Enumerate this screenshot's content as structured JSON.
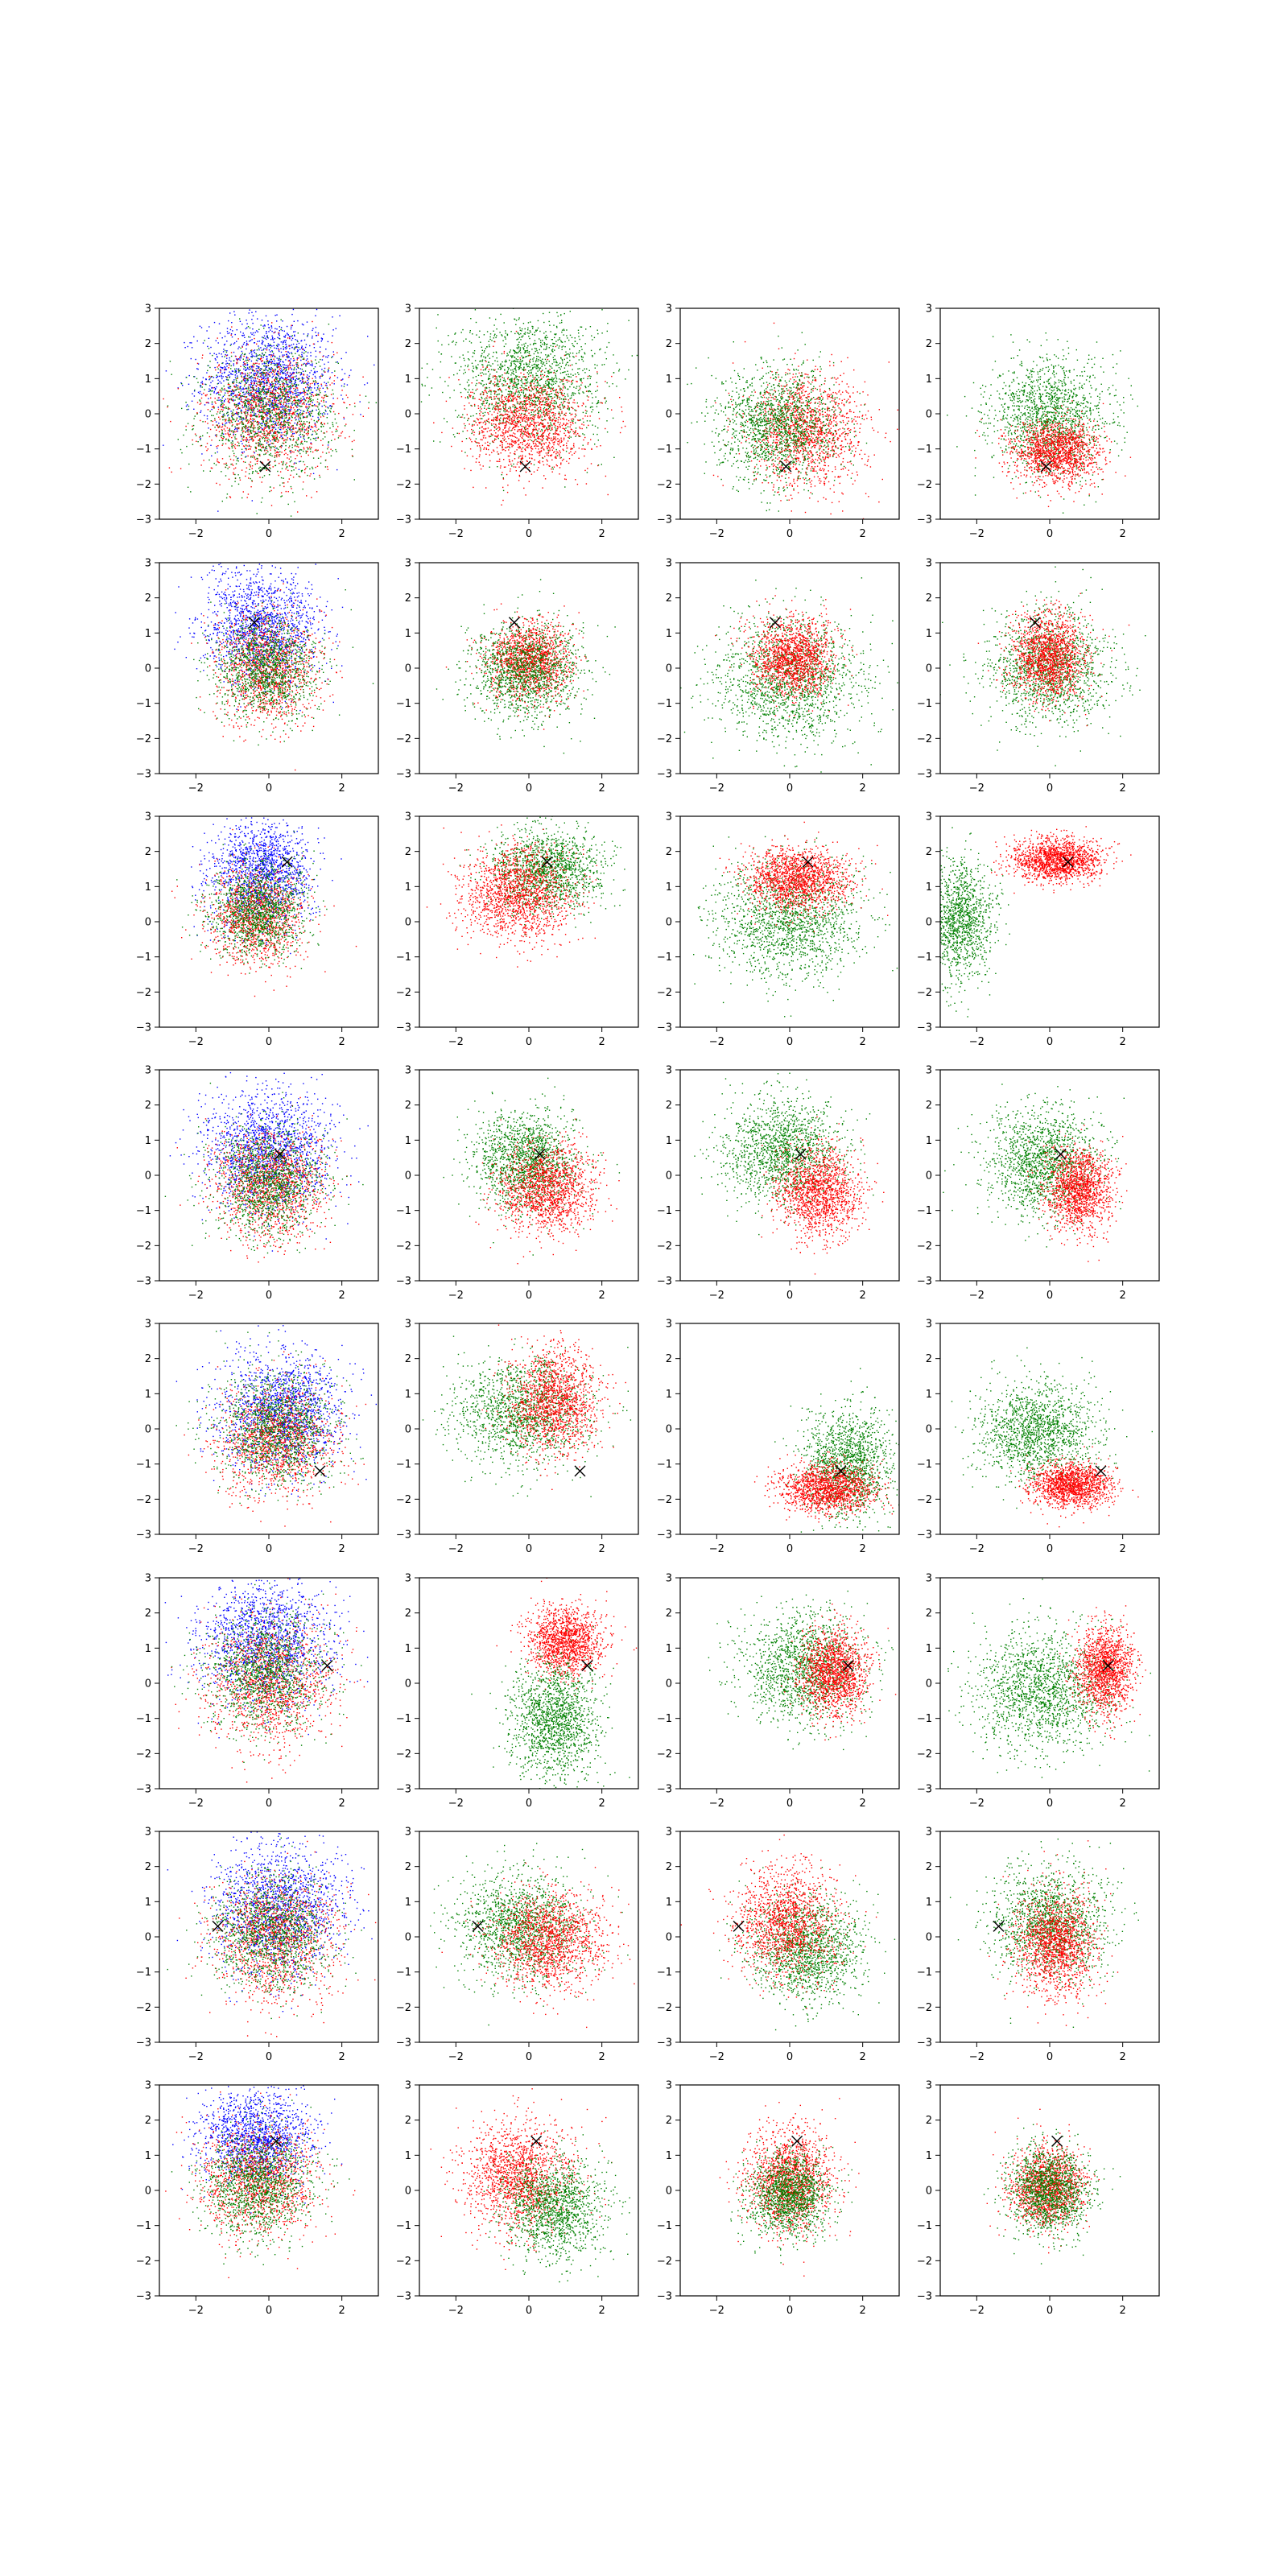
{
  "figure": {
    "rows": 8,
    "cols": 4
  },
  "colors": {
    "blue": "#0000ff",
    "green": "#008000",
    "red": "#ff0000",
    "marker": "#000000",
    "axes": "#000000"
  },
  "chart_data": {
    "type": "scatter",
    "title": "",
    "xlabel": "",
    "ylabel": "",
    "xlim": [
      -3,
      3
    ],
    "ylim": [
      -3,
      3
    ],
    "xticks": [
      "−2",
      "0",
      "2"
    ],
    "yticks": [
      "−3",
      "−2",
      "−1",
      "0",
      "1",
      "2",
      "3"
    ],
    "grid": false,
    "legend": "none",
    "marker_symbol": "x",
    "rows": [
      {
        "marker": [
          -0.1,
          -1.5
        ],
        "panels": [
          {
            "clouds": [
              {
                "color": "blue",
                "cx": 0.0,
                "cy": 1.0,
                "sx": 0.9,
                "sy": 0.9,
                "n": 1500
              },
              {
                "color": "red",
                "cx": 0.0,
                "cy": 0.0,
                "sx": 0.9,
                "sy": 0.9,
                "n": 1300
              },
              {
                "color": "green",
                "cx": 0.0,
                "cy": 0.0,
                "sx": 0.9,
                "sy": 0.9,
                "n": 1300
              }
            ]
          },
          {
            "clouds": [
              {
                "color": "green",
                "cx": 0.0,
                "cy": 1.0,
                "sx": 1.0,
                "sy": 0.9,
                "n": 1600
              },
              {
                "color": "red",
                "cx": 0.0,
                "cy": -0.3,
                "sx": 0.8,
                "sy": 0.7,
                "n": 1400
              }
            ]
          },
          {
            "clouds": [
              {
                "color": "red",
                "cx": 0.5,
                "cy": -0.5,
                "sx": 0.8,
                "sy": 0.8,
                "n": 1400
              },
              {
                "color": "green",
                "cx": -0.3,
                "cy": -0.3,
                "sx": 0.8,
                "sy": 0.8,
                "n": 1500
              }
            ]
          },
          {
            "clouds": [
              {
                "color": "green",
                "cx": 0.0,
                "cy": -0.1,
                "sx": 0.8,
                "sy": 0.8,
                "n": 1500
              },
              {
                "color": "red",
                "cx": 0.2,
                "cy": -1.1,
                "sx": 0.6,
                "sy": 0.45,
                "n": 1400
              }
            ]
          }
        ]
      },
      {
        "marker": [
          -0.4,
          1.3
        ],
        "panels": [
          {
            "clouds": [
              {
                "color": "blue",
                "cx": -0.2,
                "cy": 1.2,
                "sx": 0.8,
                "sy": 0.8,
                "n": 1400
              },
              {
                "color": "red",
                "cx": 0.0,
                "cy": 0.0,
                "sx": 0.7,
                "sy": 0.8,
                "n": 1200
              },
              {
                "color": "green",
                "cx": -0.1,
                "cy": 0.0,
                "sx": 0.7,
                "sy": 0.7,
                "n": 1300
              }
            ]
          },
          {
            "clouds": [
              {
                "color": "red",
                "cx": 0.0,
                "cy": 0.2,
                "sx": 0.55,
                "sy": 0.55,
                "n": 1400
              },
              {
                "color": "green",
                "cx": -0.1,
                "cy": -0.1,
                "sx": 0.75,
                "sy": 0.7,
                "n": 1400
              }
            ]
          },
          {
            "clouds": [
              {
                "color": "green",
                "cx": 0.0,
                "cy": -0.3,
                "sx": 1.0,
                "sy": 0.85,
                "n": 1600
              },
              {
                "color": "red",
                "cx": 0.1,
                "cy": 0.3,
                "sx": 0.55,
                "sy": 0.55,
                "n": 1400
              }
            ]
          },
          {
            "clouds": [
              {
                "color": "green",
                "cx": 0.0,
                "cy": 0.0,
                "sx": 0.8,
                "sy": 0.8,
                "n": 1500
              },
              {
                "color": "red",
                "cx": 0.0,
                "cy": 0.3,
                "sx": 0.5,
                "sy": 0.6,
                "n": 1400
              }
            ]
          }
        ]
      },
      {
        "marker": [
          0.5,
          1.7
        ],
        "panels": [
          {
            "clouds": [
              {
                "color": "blue",
                "cx": -0.2,
                "cy": 1.4,
                "sx": 0.7,
                "sy": 0.75,
                "n": 1400
              },
              {
                "color": "red",
                "cx": -0.3,
                "cy": 0.2,
                "sx": 0.65,
                "sy": 0.7,
                "n": 1200
              },
              {
                "color": "green",
                "cx": -0.3,
                "cy": 0.3,
                "sx": 0.65,
                "sy": 0.65,
                "n": 1300
              }
            ]
          },
          {
            "clouds": [
              {
                "color": "green",
                "cx": 0.5,
                "cy": 1.5,
                "sx": 0.75,
                "sy": 0.55,
                "n": 1400
              },
              {
                "color": "red",
                "cx": -0.3,
                "cy": 0.8,
                "sx": 0.75,
                "sy": 0.65,
                "n": 1500
              }
            ]
          },
          {
            "clouds": [
              {
                "color": "green",
                "cx": 0.0,
                "cy": 0.0,
                "sx": 1.0,
                "sy": 0.8,
                "n": 1600
              },
              {
                "color": "red",
                "cx": 0.2,
                "cy": 1.2,
                "sx": 0.7,
                "sy": 0.45,
                "n": 1500
              }
            ]
          },
          {
            "clouds": [
              {
                "color": "green",
                "cx": -2.5,
                "cy": 0.0,
                "sx": 0.5,
                "sy": 0.85,
                "n": 1300
              },
              {
                "color": "red",
                "cx": 0.2,
                "cy": 1.75,
                "sx": 0.6,
                "sy": 0.3,
                "n": 1500
              }
            ]
          }
        ]
      },
      {
        "marker": [
          0.3,
          0.6
        ],
        "panels": [
          {
            "clouds": [
              {
                "color": "blue",
                "cx": 0.0,
                "cy": 0.7,
                "sx": 0.85,
                "sy": 0.85,
                "n": 1500
              },
              {
                "color": "red",
                "cx": 0.0,
                "cy": -0.3,
                "sx": 0.75,
                "sy": 0.75,
                "n": 1300
              },
              {
                "color": "green",
                "cx": 0.0,
                "cy": -0.2,
                "sx": 0.75,
                "sy": 0.75,
                "n": 1300
              }
            ]
          },
          {
            "clouds": [
              {
                "color": "green",
                "cx": -0.1,
                "cy": 0.4,
                "sx": 0.7,
                "sy": 0.7,
                "n": 1500
              },
              {
                "color": "red",
                "cx": 0.5,
                "cy": -0.4,
                "sx": 0.65,
                "sy": 0.6,
                "n": 1400
              }
            ]
          },
          {
            "clouds": [
              {
                "color": "green",
                "cx": -0.2,
                "cy": 0.7,
                "sx": 0.8,
                "sy": 0.75,
                "n": 1500
              },
              {
                "color": "red",
                "cx": 0.8,
                "cy": -0.5,
                "sx": 0.55,
                "sy": 0.65,
                "n": 1400
              }
            ]
          },
          {
            "clouds": [
              {
                "color": "green",
                "cx": -0.2,
                "cy": 0.4,
                "sx": 0.75,
                "sy": 0.75,
                "n": 1500
              },
              {
                "color": "red",
                "cx": 0.8,
                "cy": -0.4,
                "sx": 0.45,
                "sy": 0.6,
                "n": 1400
              }
            ]
          }
        ]
      },
      {
        "marker": [
          1.4,
          -1.2
        ],
        "panels": [
          {
            "clouds": [
              {
                "color": "blue",
                "cx": 0.4,
                "cy": 0.5,
                "sx": 0.85,
                "sy": 0.85,
                "n": 1500
              },
              {
                "color": "red",
                "cx": 0.2,
                "cy": -0.3,
                "sx": 0.8,
                "sy": 0.8,
                "n": 1300
              },
              {
                "color": "green",
                "cx": 0.2,
                "cy": 0.0,
                "sx": 0.8,
                "sy": 0.8,
                "n": 1300
              }
            ]
          },
          {
            "clouds": [
              {
                "color": "green",
                "cx": -0.2,
                "cy": 0.5,
                "sx": 0.9,
                "sy": 0.75,
                "n": 1500
              },
              {
                "color": "red",
                "cx": 0.7,
                "cy": 0.8,
                "sx": 0.6,
                "sy": 0.75,
                "n": 1400
              }
            ]
          },
          {
            "clouds": [
              {
                "color": "green",
                "cx": 1.6,
                "cy": -1.0,
                "sx": 0.6,
                "sy": 0.75,
                "n": 1400
              },
              {
                "color": "red",
                "cx": 1.0,
                "cy": -1.7,
                "sx": 0.65,
                "sy": 0.35,
                "n": 1400
              }
            ]
          },
          {
            "clouds": [
              {
                "color": "green",
                "cx": -0.3,
                "cy": -0.1,
                "sx": 0.8,
                "sy": 0.7,
                "n": 1500
              },
              {
                "color": "red",
                "cx": 0.6,
                "cy": -1.6,
                "sx": 0.55,
                "sy": 0.3,
                "n": 1400
              }
            ]
          }
        ]
      },
      {
        "marker": [
          1.6,
          0.5
        ],
        "panels": [
          {
            "clouds": [
              {
                "color": "blue",
                "cx": -0.1,
                "cy": 1.2,
                "sx": 0.9,
                "sy": 0.85,
                "n": 1500
              },
              {
                "color": "red",
                "cx": 0.0,
                "cy": 0.0,
                "sx": 0.85,
                "sy": 0.9,
                "n": 1300
              },
              {
                "color": "green",
                "cx": -0.1,
                "cy": 0.3,
                "sx": 0.8,
                "sy": 0.8,
                "n": 1300
              }
            ]
          },
          {
            "clouds": [
              {
                "color": "red",
                "cx": 1.0,
                "cy": 1.2,
                "sx": 0.5,
                "sy": 0.5,
                "n": 1400
              },
              {
                "color": "green",
                "cx": 0.7,
                "cy": -1.0,
                "sx": 0.6,
                "sy": 0.8,
                "n": 1500
              }
            ]
          },
          {
            "clouds": [
              {
                "color": "green",
                "cx": 0.4,
                "cy": 0.4,
                "sx": 0.85,
                "sy": 0.8,
                "n": 1500
              },
              {
                "color": "red",
                "cx": 1.2,
                "cy": 0.3,
                "sx": 0.45,
                "sy": 0.6,
                "n": 1400
              }
            ]
          },
          {
            "clouds": [
              {
                "color": "green",
                "cx": -0.2,
                "cy": -0.2,
                "sx": 0.95,
                "sy": 0.85,
                "n": 1600
              },
              {
                "color": "red",
                "cx": 1.5,
                "cy": 0.4,
                "sx": 0.4,
                "sy": 0.6,
                "n": 1400
              }
            ]
          }
        ]
      },
      {
        "marker": [
          -1.4,
          0.3
        ],
        "panels": [
          {
            "clouds": [
              {
                "color": "blue",
                "cx": 0.3,
                "cy": 0.8,
                "sx": 0.9,
                "sy": 0.9,
                "n": 1500
              },
              {
                "color": "red",
                "cx": 0.2,
                "cy": 0.0,
                "sx": 0.85,
                "sy": 0.85,
                "n": 1300
              },
              {
                "color": "green",
                "cx": 0.1,
                "cy": 0.1,
                "sx": 0.8,
                "sy": 0.8,
                "n": 1300
              }
            ]
          },
          {
            "clouds": [
              {
                "color": "green",
                "cx": -0.2,
                "cy": 0.3,
                "sx": 0.85,
                "sy": 0.75,
                "n": 1500
              },
              {
                "color": "red",
                "cx": 0.6,
                "cy": -0.1,
                "sx": 0.75,
                "sy": 0.7,
                "n": 1400
              }
            ]
          },
          {
            "clouds": [
              {
                "color": "green",
                "cx": 0.5,
                "cy": -0.3,
                "sx": 0.75,
                "sy": 0.75,
                "n": 1500
              },
              {
                "color": "red",
                "cx": -0.1,
                "cy": 0.4,
                "sx": 0.7,
                "sy": 0.75,
                "n": 1400
              }
            ]
          },
          {
            "clouds": [
              {
                "color": "green",
                "cx": 0.0,
                "cy": 0.4,
                "sx": 0.8,
                "sy": 0.75,
                "n": 1500
              },
              {
                "color": "red",
                "cx": 0.2,
                "cy": -0.2,
                "sx": 0.55,
                "sy": 0.75,
                "n": 1400
              }
            ]
          }
        ]
      },
      {
        "marker": [
          0.2,
          1.4
        ],
        "panels": [
          {
            "clouds": [
              {
                "color": "blue",
                "cx": -0.3,
                "cy": 1.5,
                "sx": 0.75,
                "sy": 0.65,
                "n": 1400
              },
              {
                "color": "red",
                "cx": -0.3,
                "cy": 0.3,
                "sx": 0.8,
                "sy": 0.8,
                "n": 1300
              },
              {
                "color": "green",
                "cx": -0.3,
                "cy": 0.2,
                "sx": 0.75,
                "sy": 0.75,
                "n": 1300
              }
            ]
          },
          {
            "clouds": [
              {
                "color": "red",
                "cx": -0.3,
                "cy": 0.4,
                "sx": 0.75,
                "sy": 0.75,
                "n": 1500
              },
              {
                "color": "green",
                "cx": 0.7,
                "cy": -0.5,
                "sx": 0.7,
                "sy": 0.7,
                "n": 1400
              }
            ]
          },
          {
            "clouds": [
              {
                "color": "red",
                "cx": 0.0,
                "cy": 0.3,
                "sx": 0.6,
                "sy": 0.7,
                "n": 1500
              },
              {
                "color": "green",
                "cx": 0.0,
                "cy": -0.1,
                "sx": 0.55,
                "sy": 0.6,
                "n": 1400
              }
            ]
          },
          {
            "clouds": [
              {
                "color": "red",
                "cx": -0.1,
                "cy": 0.1,
                "sx": 0.5,
                "sy": 0.55,
                "n": 1400
              },
              {
                "color": "green",
                "cx": 0.0,
                "cy": 0.0,
                "sx": 0.55,
                "sy": 0.6,
                "n": 1400
              }
            ]
          }
        ]
      }
    ]
  }
}
